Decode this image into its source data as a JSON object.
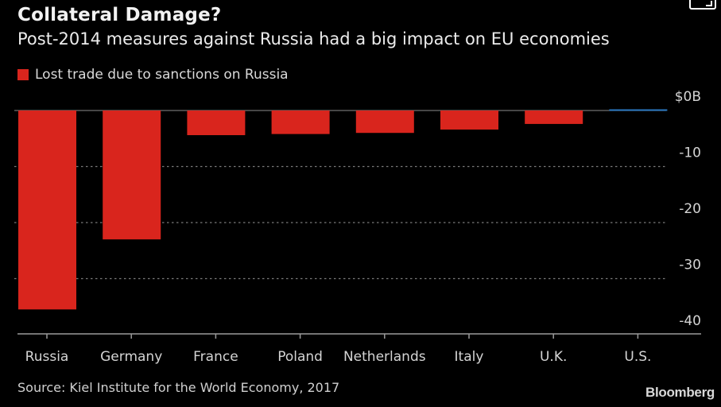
{
  "header": {
    "title": "Collateral Damage?",
    "subtitle": "Post-2014 measures against Russia had a big impact on EU economies"
  },
  "footer": {
    "source": "Source: Kiel Institute for the World Economy, 2017",
    "brand": "Bloomberg"
  },
  "icons": {
    "expand": "expand-icon"
  },
  "chart_data": {
    "type": "bar",
    "title": "Collateral Damage?",
    "subtitle": "Post-2014 measures against Russia had a big impact on EU economies",
    "xlabel": "",
    "ylabel": "",
    "legend": {
      "position": "top-left",
      "entries": [
        {
          "name": "Lost trade due to sanctions on Russia",
          "color": "#d9251d"
        }
      ]
    },
    "categories": [
      "Russia",
      "Germany",
      "France",
      "Poland",
      "Netherlands",
      "Italy",
      "U.K.",
      "U.S."
    ],
    "series": [
      {
        "name": "Lost trade due to sanctions on Russia",
        "values": [
          -35.5,
          -23.0,
          -4.4,
          -4.2,
          -4.0,
          -3.4,
          -2.4,
          -0.1
        ],
        "colors": [
          "#d9251d",
          "#d9251d",
          "#d9251d",
          "#d9251d",
          "#d9251d",
          "#d9251d",
          "#d9251d",
          "#2a78c0"
        ]
      }
    ],
    "ylim": [
      -40,
      0
    ],
    "yticks": [
      0,
      -10,
      -20,
      -30,
      -40
    ],
    "ytick_labels": [
      "$0B",
      "-10",
      "-20",
      "-30",
      "-40"
    ],
    "y_axis_position": "right",
    "grid": true,
    "grid_style": "dotted",
    "source": "Source: Kiel Institute for the World Economy, 2017"
  }
}
